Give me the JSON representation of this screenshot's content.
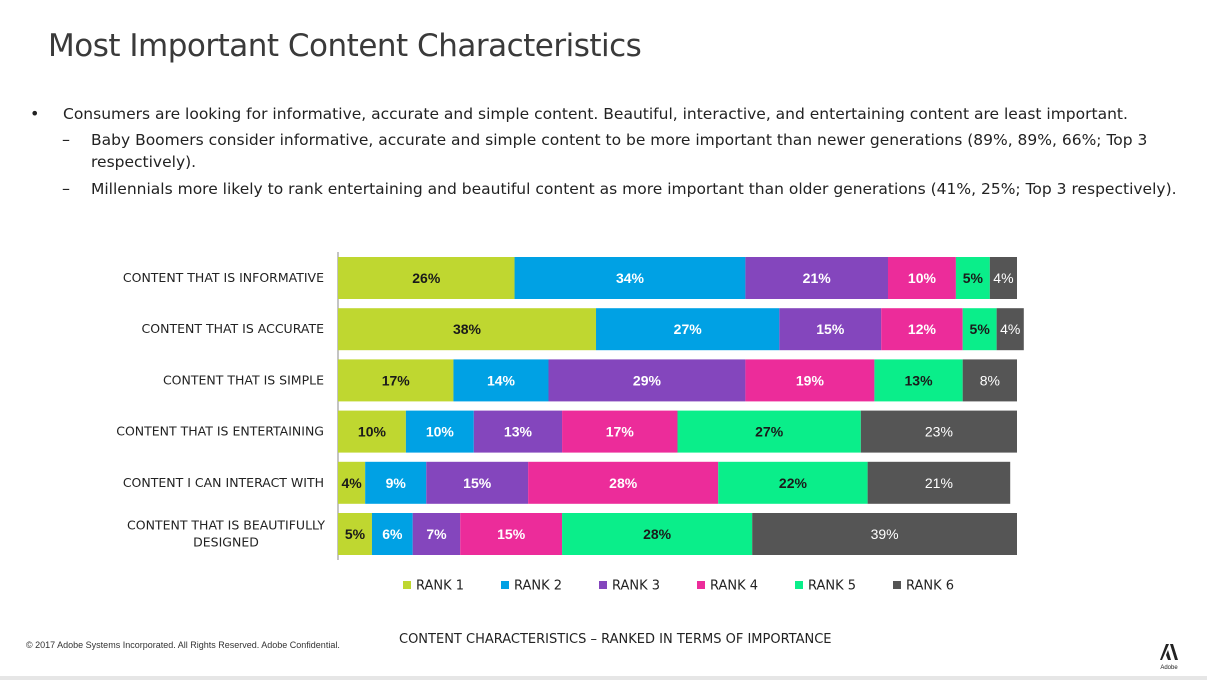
{
  "page": {
    "title": "Most Important Content Characteristics",
    "bullets": [
      {
        "text": "Consumers are looking for informative, accurate and simple content. Beautiful, interactive, and entertaining content are least important.",
        "subs": [
          "Baby Boomers consider informative, accurate and simple content to be more important than newer generations (89%, 89%, 66%; Top 3 respectively).",
          "Millennials more likely to rank entertaining and beautiful content as more important than older generations (41%, 25%; Top 3 respectively)."
        ]
      }
    ],
    "footer_left": "© 2017 Adobe Systems Incorporated.  All Rights Reserved.  Adobe Confidential.",
    "footer_center": "CONTENT CHARACTERISTICS – RANKED IN TERMS OF IMPORTANCE",
    "logo_text": "Adobe"
  },
  "chart_data": {
    "type": "bar",
    "orientation": "horizontal",
    "stacked": true,
    "categories": [
      "CONTENT THAT IS INFORMATIVE",
      "CONTENT THAT IS ACCURATE",
      "CONTENT THAT IS SIMPLE",
      "CONTENT THAT IS ENTERTAINING",
      "CONTENT I CAN INTERACT WITH",
      "CONTENT THAT IS BEAUTIFULLY DESIGNED"
    ],
    "series": [
      {
        "name": "RANK 1",
        "color": "#bfd730",
        "label_color": "#1a1a1a",
        "values": [
          26,
          38,
          17,
          10,
          4,
          5
        ]
      },
      {
        "name": "RANK 2",
        "color": "#00a1e4",
        "label_color": "#ffffff",
        "values": [
          34,
          27,
          14,
          10,
          9,
          6
        ]
      },
      {
        "name": "RANK 3",
        "color": "#8446bd",
        "label_color": "#ffffff",
        "values": [
          21,
          15,
          29,
          13,
          15,
          7
        ]
      },
      {
        "name": "RANK 4",
        "color": "#ec2c9a",
        "label_color": "#ffffff",
        "values": [
          10,
          12,
          19,
          17,
          28,
          15
        ]
      },
      {
        "name": "RANK 5",
        "color": "#0aee8a",
        "label_color": "#1a1a1a",
        "values": [
          5,
          5,
          13,
          27,
          22,
          28
        ]
      },
      {
        "name": "RANK 6",
        "color": "#555555",
        "label_color": "#ffffff",
        "values": [
          4,
          4,
          8,
          23,
          21,
          39
        ]
      }
    ],
    "xlim": [
      0,
      100
    ],
    "value_suffix": "%",
    "legend_position": "bottom"
  }
}
